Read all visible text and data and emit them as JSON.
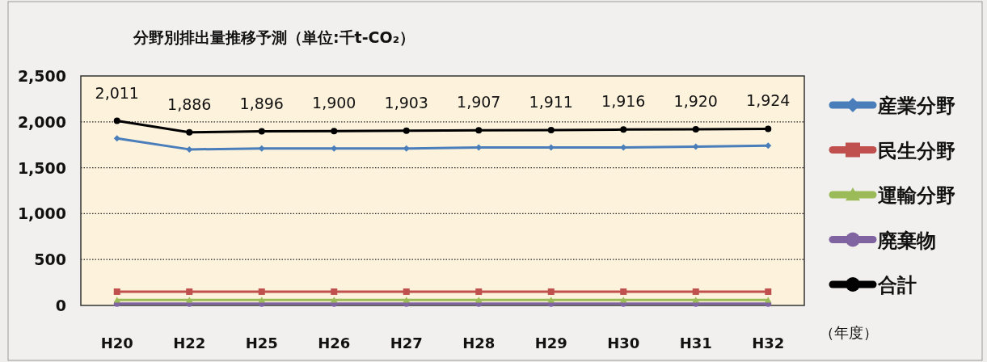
{
  "chart_data": {
    "type": "line",
    "title": "分野別排出量推移予測（単位:千t-CO₂）",
    "xlabel": "（年度）",
    "categories": [
      "H20",
      "H22",
      "H25",
      "H26",
      "H27",
      "H28",
      "H29",
      "H30",
      "H31",
      "H32"
    ],
    "series": [
      {
        "name": "産業分野",
        "color": "#4a7ebb",
        "marker": "diamond",
        "values": [
          1820,
          1700,
          1710,
          1710,
          1710,
          1720,
          1720,
          1720,
          1730,
          1740
        ]
      },
      {
        "name": "民生分野",
        "color": "#c0504d",
        "marker": "square",
        "values": [
          150,
          150,
          150,
          150,
          150,
          150,
          150,
          150,
          150,
          150
        ]
      },
      {
        "name": "運輸分野",
        "color": "#9bbb59",
        "marker": "triangle",
        "values": [
          60,
          60,
          60,
          60,
          60,
          60,
          60,
          60,
          60,
          60
        ]
      },
      {
        "name": "廃棄物",
        "color": "#8064a2",
        "marker": "circle",
        "values": [
          20,
          20,
          20,
          20,
          20,
          20,
          20,
          20,
          20,
          20
        ]
      },
      {
        "name": "合計",
        "color": "#000000",
        "marker": "circle",
        "values": [
          2011,
          1886,
          1896,
          1900,
          1903,
          1907,
          1911,
          1916,
          1920,
          1924
        ],
        "value_labels": [
          "2,011",
          "1,886",
          "1,896",
          "1,900",
          "1,903",
          "1,907",
          "1,911",
          "1,916",
          "1,920",
          "1,924"
        ]
      }
    ],
    "ylim": [
      0,
      2500
    ],
    "yticks": [
      {
        "value": 0,
        "label": "0"
      },
      {
        "value": 500,
        "label": "500"
      },
      {
        "value": 1000,
        "label": "1,000"
      },
      {
        "value": 1500,
        "label": "1,500"
      },
      {
        "value": 2000,
        "label": "2,000"
      },
      {
        "value": 2500,
        "label": "2,500"
      }
    ],
    "grid": "y",
    "legend": "right"
  }
}
